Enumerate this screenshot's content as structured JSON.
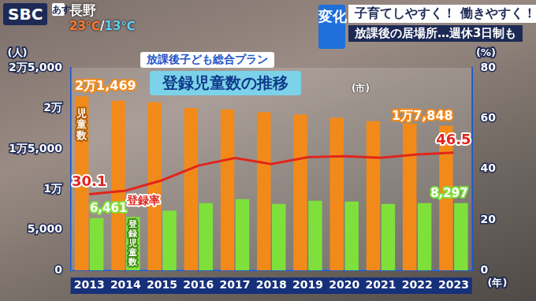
{
  "chart_data": {
    "type": "bar",
    "title": "登録児童数の推移",
    "subtitle": "放課後子ども総合プラン",
    "annotations": {
      "logo": "SBC",
      "day": "あす",
      "place": "長野",
      "temp_high": "23℃",
      "separator": "/",
      "temp_low": "13℃",
      "tag": "変化",
      "headline": "子育てしやすく！ 働きやすく！",
      "subheadline": "放課後の居場所…週休3日制も",
      "note": "(市)"
    },
    "x_label": "(年)",
    "y_label": "(人)",
    "y2_label": "(%)",
    "categories": [
      "2013",
      "2014",
      "2015",
      "2016",
      "2017",
      "2018",
      "2019",
      "2020",
      "2021",
      "2022",
      "2023"
    ],
    "series": [
      {
        "name": "児童数",
        "type": "bar",
        "color": "#f28a1a",
        "values": [
          21469,
          20950,
          20750,
          20040,
          19840,
          19530,
          19230,
          18830,
          18420,
          18120,
          17848
        ],
        "value_labels": [
          "2万1,469",
          null,
          null,
          null,
          null,
          null,
          null,
          null,
          null,
          null,
          "1万7,848"
        ]
      },
      {
        "name": "登録児童数",
        "type": "bar",
        "color": "#7fe03c",
        "values": [
          6461,
          6600,
          7390,
          8300,
          8800,
          8200,
          8600,
          8500,
          8200,
          8300,
          8297
        ],
        "value_labels": [
          "6,461",
          null,
          null,
          null,
          null,
          null,
          null,
          null,
          null,
          null,
          "8,297"
        ]
      },
      {
        "name": "登録率",
        "type": "line",
        "axis": "y2",
        "color": "#e0261c",
        "marker": "none",
        "line_style": "solid",
        "values": [
          30.1,
          31.5,
          35.6,
          41.4,
          44.4,
          42.0,
          44.7,
          45.1,
          44.5,
          45.8,
          46.5
        ],
        "value_labels": [
          "30.1",
          null,
          null,
          null,
          null,
          null,
          null,
          null,
          null,
          null,
          "46.5"
        ]
      }
    ],
    "ylim": [
      0,
      25000
    ],
    "yticks": [
      0,
      {
        "value": 5000,
        "label": "5,000"
      },
      {
        "value": 10000,
        "label": "1万"
      },
      {
        "value": 15000,
        "label": "1万5,000"
      },
      {
        "value": 20000,
        "label": "2万"
      },
      {
        "value": 25000,
        "label": "2万5,000"
      }
    ],
    "y2lim": [
      0,
      80
    ],
    "y2ticks": [
      0,
      20,
      40,
      60,
      80
    ],
    "grid": false
  }
}
